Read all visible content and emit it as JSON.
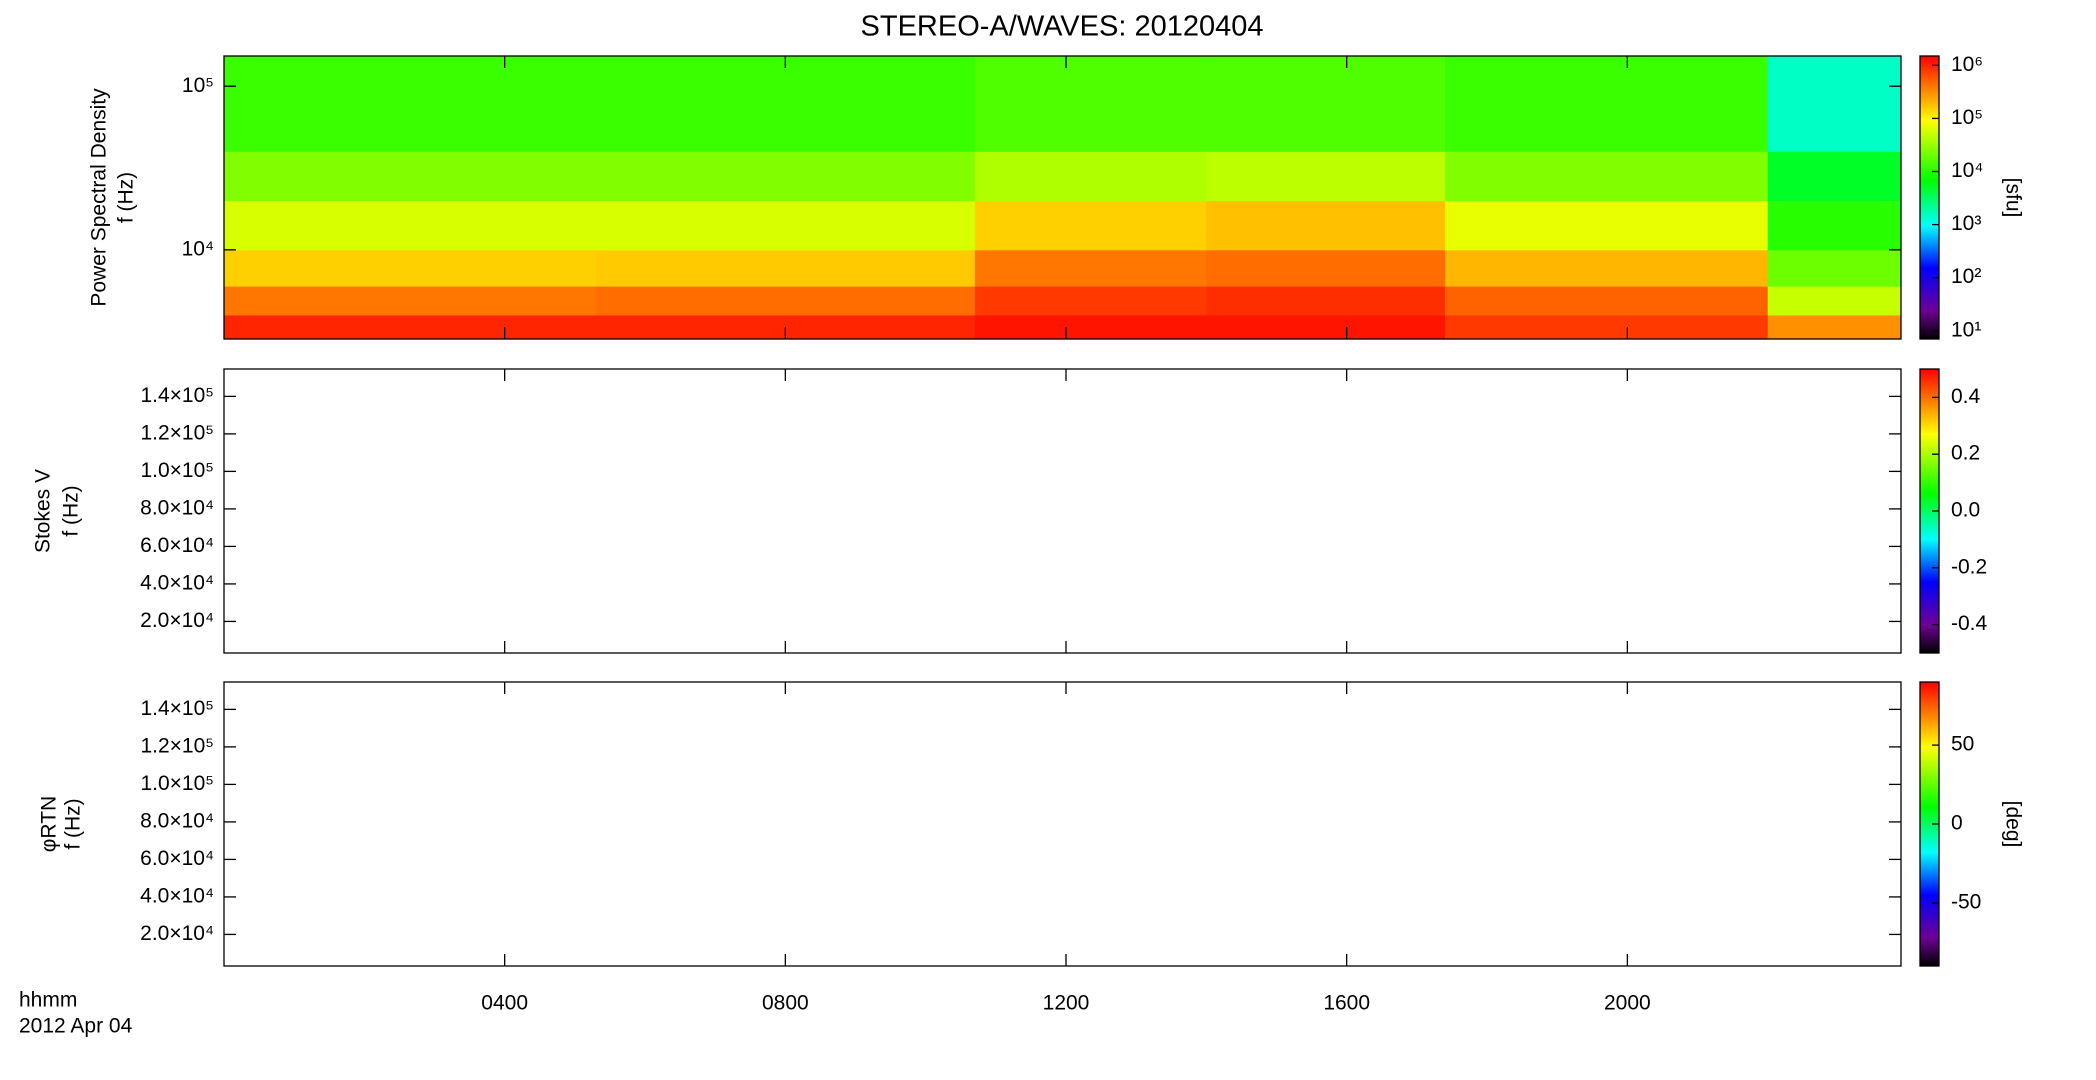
{
  "chart_data": [
    {
      "type": "spectrogram",
      "title": "STEREO-A/WAVES: 20120404",
      "ylabel": [
        "Power Spectral Density",
        "f (Hz)"
      ],
      "xlim": [
        0,
        23.9
      ],
      "xticks": [
        4,
        8,
        12,
        16,
        20
      ],
      "ylim": [
        2850,
        153000
      ],
      "ylog": true,
      "yticks": [
        {
          "value": 10000,
          "label": "10⁴"
        },
        {
          "value": 100000,
          "label": "10⁵"
        }
      ],
      "x_edges": [
        0,
        5.3,
        10.7,
        14,
        17.4,
        22,
        23.9
      ],
      "y_edges": [
        2850,
        4000,
        6000,
        10000,
        20000,
        40000,
        153000
      ],
      "z": [
        [
          1000000,
          400000,
          150000,
          60000,
          25000,
          12000
        ],
        [
          1000000,
          450000,
          160000,
          60000,
          25000,
          12000
        ],
        [
          1200000,
          800000,
          400000,
          150000,
          40000,
          15000
        ],
        [
          1200000,
          900000,
          450000,
          180000,
          45000,
          15000
        ],
        [
          800000,
          500000,
          200000,
          70000,
          25000,
          12000
        ],
        [
          300000,
          50000,
          20000,
          10000,
          5000,
          1500
        ]
      ],
      "zlim": [
        7,
        1500000
      ],
      "zlog": true,
      "zticks": [
        {
          "value": 10,
          "label": "10¹"
        },
        {
          "value": 100,
          "label": "10²"
        },
        {
          "value": 1000,
          "label": "10³"
        },
        {
          "value": 10000,
          "label": "10⁴"
        },
        {
          "value": 100000,
          "label": "10⁵"
        },
        {
          "value": 1000000,
          "label": "10⁶"
        }
      ],
      "zlabel": "[sfu]"
    },
    {
      "type": "spectrogram",
      "ylabel": [
        "Stokes V",
        "f (Hz)"
      ],
      "xlim": [
        0,
        23.9
      ],
      "xticks": [
        4,
        8,
        12,
        16,
        20
      ],
      "ylim": [
        3170,
        154600
      ],
      "yticks": [
        {
          "value": 20000,
          "label": "2.0×10⁴"
        },
        {
          "value": 40000,
          "label": "4.0×10⁴"
        },
        {
          "value": 60000,
          "label": "6.0×10⁴"
        },
        {
          "value": 80000,
          "label": "8.0×10⁴"
        },
        {
          "value": 100000,
          "label": "1.0×10⁵"
        },
        {
          "value": 120000,
          "label": "1.2×10⁵"
        },
        {
          "value": 140000,
          "label": "1.4×10⁵"
        }
      ],
      "zlim": [
        -0.5,
        0.5
      ],
      "zticks": [
        -0.4,
        -0.2,
        {
          "value": 0,
          "label": "0.0"
        },
        0.2,
        0.4
      ]
    },
    {
      "type": "spectrogram",
      "ylabel": [
        "φRTN",
        "f (Hz)"
      ],
      "xlabel": [
        "hhmm",
        "2012 Apr 04"
      ],
      "xlim": [
        0,
        23.9
      ],
      "xticks": [
        {
          "value": 4,
          "label": "0400"
        },
        {
          "value": 8,
          "label": "0800"
        },
        {
          "value": 12,
          "label": "1200"
        },
        {
          "value": 16,
          "label": "1600"
        },
        {
          "value": 20,
          "label": "2000"
        }
      ],
      "ylim": [
        3170,
        154600
      ],
      "yticks": [
        {
          "value": 20000,
          "label": "2.0×10⁴"
        },
        {
          "value": 40000,
          "label": "4.0×10⁴"
        },
        {
          "value": 60000,
          "label": "6.0×10⁴"
        },
        {
          "value": 80000,
          "label": "8.0×10⁴"
        },
        {
          "value": 100000,
          "label": "1.0×10⁵"
        },
        {
          "value": 120000,
          "label": "1.2×10⁵"
        },
        {
          "value": 140000,
          "label": "1.4×10⁵"
        }
      ],
      "zlim": [
        -90,
        90
      ],
      "zticks": [
        -50,
        0,
        50
      ],
      "zlabel": "[deg]"
    }
  ]
}
